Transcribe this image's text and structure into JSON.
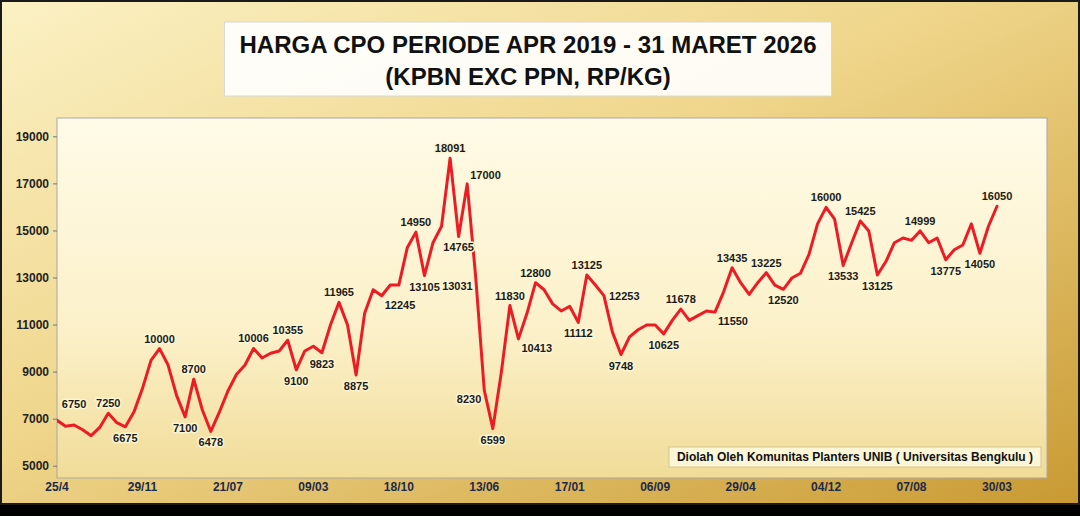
{
  "chart_data": {
    "type": "line",
    "title": "HARGA CPO PERIODE APR 2019 - 31 MARET 2026",
    "subtitle": "(KPBN EXC PPN, RP/KG)",
    "annotations": [
      "Diolah Oleh Komunitas Planters UNIB ( Universitas Bengkulu )"
    ],
    "categories": [
      "25/4",
      null,
      null,
      null,
      null,
      null,
      null,
      null,
      null,
      null,
      "29/11",
      null,
      null,
      null,
      null,
      null,
      null,
      null,
      null,
      null,
      "21/07",
      null,
      null,
      null,
      null,
      null,
      null,
      null,
      null,
      null,
      "09/03",
      null,
      null,
      null,
      null,
      null,
      null,
      null,
      null,
      null,
      "18/10",
      null,
      null,
      null,
      null,
      null,
      null,
      null,
      null,
      null,
      "13/06",
      null,
      null,
      null,
      null,
      null,
      null,
      null,
      null,
      null,
      "17/01",
      null,
      null,
      null,
      null,
      null,
      null,
      null,
      null,
      null,
      "06/09",
      null,
      null,
      null,
      null,
      null,
      null,
      null,
      null,
      null,
      "29/04",
      null,
      null,
      null,
      null,
      null,
      null,
      null,
      null,
      null,
      "04/12",
      null,
      null,
      null,
      null,
      null,
      null,
      null,
      null,
      null,
      "07/08",
      null,
      null,
      null,
      null,
      null,
      null,
      null,
      null,
      null,
      "30/03"
    ],
    "values": [
      6950,
      6700,
      6750,
      6550,
      6300,
      6650,
      7250,
      6850,
      6675,
      7300,
      8300,
      9500,
      10000,
      9300,
      8000,
      7100,
      8700,
      7400,
      6478,
      7300,
      8200,
      8900,
      9300,
      10006,
      9600,
      9800,
      9900,
      10355,
      9100,
      9900,
      10100,
      9823,
      11000,
      11965,
      11000,
      8875,
      11500,
      12500,
      12245,
      12700,
      12700,
      14300,
      14950,
      13105,
      14500,
      15200,
      18091,
      14765,
      17000,
      13031,
      8230,
      6599,
      9000,
      11830,
      10413,
      11500,
      12800,
      12500,
      11900,
      11600,
      11800,
      11112,
      13125,
      12700,
      12253,
      10700,
      9748,
      10500,
      10800,
      11000,
      11000,
      10625,
      11200,
      11678,
      11200,
      11400,
      11600,
      11550,
      12400,
      13435,
      12800,
      12300,
      12800,
      13225,
      12700,
      12520,
      13000,
      13200,
      14000,
      15300,
      16000,
      15500,
      13533,
      14500,
      15425,
      15000,
      13125,
      13700,
      14500,
      14700,
      14600,
      14999,
      14500,
      14700,
      13775,
      14200,
      14400,
      15300,
      14050,
      15200,
      16050
    ],
    "value_labels": [
      null,
      null,
      "6750",
      null,
      null,
      null,
      "7250",
      null,
      "6675",
      null,
      null,
      null,
      "10000",
      null,
      null,
      "7100",
      "8700",
      null,
      "6478",
      null,
      null,
      null,
      null,
      "10006",
      null,
      null,
      null,
      "10355",
      "9100",
      null,
      null,
      "9823",
      null,
      "11965",
      null,
      "8875",
      null,
      null,
      "12245",
      null,
      null,
      null,
      "14950",
      "13105",
      null,
      null,
      "18091",
      "14765",
      "17000",
      "13031",
      "8230",
      "6599",
      null,
      "11830",
      "10413",
      null,
      "12800",
      null,
      null,
      null,
      null,
      "11112",
      "13125",
      null,
      "12253",
      null,
      "9748",
      null,
      null,
      null,
      null,
      "10625",
      null,
      "11678",
      null,
      null,
      null,
      "11550",
      null,
      "13435",
      null,
      null,
      null,
      "13225",
      null,
      "12520",
      null,
      null,
      null,
      null,
      "16000",
      null,
      "13533",
      null,
      "15425",
      null,
      "13125",
      null,
      null,
      null,
      null,
      "14999",
      null,
      null,
      "13775",
      null,
      null,
      null,
      "14050",
      null,
      "16050"
    ],
    "color": "#ed1c24",
    "ylim": [
      4500,
      19800
    ],
    "yticks": [
      5000,
      7000,
      9000,
      11000,
      13000,
      15000,
      17000,
      19000
    ],
    "grid": false,
    "data_labels": true
  }
}
